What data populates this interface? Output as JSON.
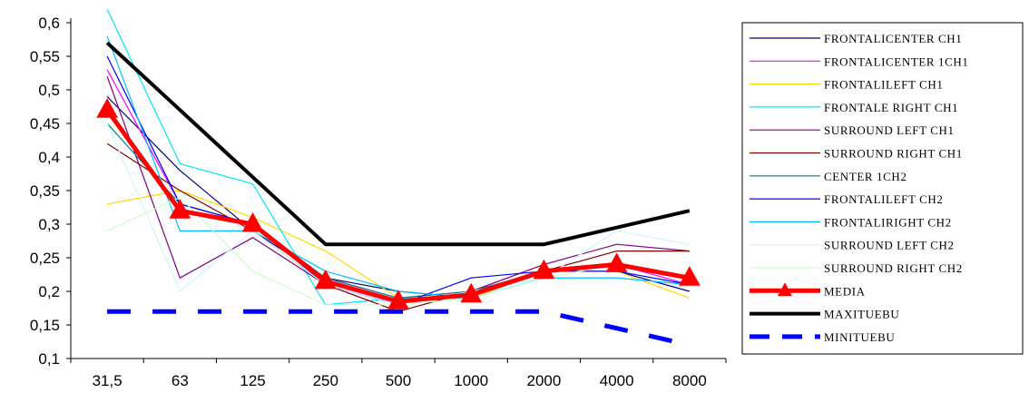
{
  "chart_data": {
    "type": "line",
    "title": "",
    "xlabel": "",
    "ylabel": "",
    "categories": [
      "31,5",
      "63",
      "125",
      "250",
      "500",
      "1000",
      "2000",
      "4000",
      "8000"
    ],
    "ylim": [
      0.1,
      0.6
    ],
    "yticks": [
      0.1,
      0.15,
      0.2,
      0.25,
      0.3,
      0.35,
      0.4,
      0.45,
      0.5,
      0.55,
      0.6
    ],
    "ytick_labels": [
      "0,1",
      "0,15",
      "0,2",
      "0,25",
      "0,3",
      "0,35",
      "0,4",
      "0,45",
      "0,5",
      "0,55",
      "0,6"
    ],
    "grid": false,
    "legend_position": "right",
    "series": [
      {
        "name": "FRONTALICENTER CH1",
        "color": "#000080",
        "width": 1.2,
        "values": [
          0.49,
          0.38,
          0.29,
          0.22,
          0.2,
          0.19,
          0.23,
          0.23,
          0.2
        ]
      },
      {
        "name": "FRONTALICENTER 1CH1",
        "color": "#FF00FF",
        "width": 1.2,
        "values": [
          0.53,
          0.33,
          0.3,
          0.22,
          0.19,
          0.2,
          0.23,
          0.24,
          0.21
        ]
      },
      {
        "name": "FRONTALILEFT CH1",
        "color": "#FFD700",
        "width": 1.2,
        "values": [
          0.33,
          0.35,
          0.31,
          0.26,
          0.19,
          0.19,
          0.23,
          0.23,
          0.19
        ]
      },
      {
        "name": "FRONTALE RIGHT CH1",
        "color": "#00E5FF",
        "width": 1.2,
        "values": [
          0.62,
          0.39,
          0.36,
          0.18,
          0.19,
          0.19,
          0.22,
          0.22,
          0.21
        ]
      },
      {
        "name": "SURROUND LEFT CH1",
        "color": "#800080",
        "width": 1.2,
        "values": [
          0.52,
          0.22,
          0.28,
          0.21,
          0.18,
          0.2,
          0.24,
          0.27,
          0.26
        ]
      },
      {
        "name": "SURROUND RIGHT CH1",
        "color": "#800000",
        "width": 1.2,
        "values": [
          0.42,
          0.35,
          0.29,
          0.21,
          0.17,
          0.2,
          0.23,
          0.26,
          0.26
        ]
      },
      {
        "name": "CENTER 1CH2",
        "color": "#008080",
        "width": 1.2,
        "values": [
          0.45,
          0.33,
          0.3,
          0.22,
          0.19,
          0.2,
          0.23,
          0.24,
          0.22
        ]
      },
      {
        "name": "FRONTALILEFT CH2",
        "color": "#0000FF",
        "width": 1.2,
        "values": [
          0.55,
          0.33,
          0.3,
          0.21,
          0.18,
          0.22,
          0.23,
          0.23,
          0.21
        ]
      },
      {
        "name": "FRONTALIRIGHT CH2",
        "color": "#00BFFF",
        "width": 1.2,
        "values": [
          0.58,
          0.29,
          0.29,
          0.23,
          0.2,
          0.19,
          0.22,
          0.22,
          0.21
        ]
      },
      {
        "name": "SURROUND LEFT CH2",
        "color": "#CCF5FF",
        "width": 1.2,
        "values": [
          0.45,
          0.2,
          0.29,
          0.21,
          0.18,
          0.2,
          0.22,
          0.29,
          0.27
        ]
      },
      {
        "name": "SURROUND RIGHT CH2",
        "color": "#CCFFCC",
        "width": 1.2,
        "values": [
          0.29,
          0.34,
          0.23,
          0.18,
          0.18,
          0.19,
          0.22,
          0.24,
          0.22
        ]
      },
      {
        "name": "MEDIA",
        "color": "#FF0000",
        "width": 5,
        "marker": "triangle",
        "values": [
          0.47,
          0.32,
          0.3,
          0.215,
          0.185,
          0.195,
          0.23,
          0.24,
          0.22
        ]
      },
      {
        "name": "MAXITUEBU",
        "color": "#000000",
        "width": 4,
        "values": [
          0.57,
          0.47,
          0.37,
          0.27,
          0.27,
          0.27,
          0.27,
          0.295,
          0.32
        ]
      },
      {
        "name": "MINITUEBU",
        "color": "#0000FF",
        "width": 5,
        "dash": "26,24",
        "values": [
          0.17,
          0.17,
          0.17,
          0.17,
          0.17,
          0.17,
          0.17,
          0.145,
          0.12
        ]
      }
    ]
  }
}
